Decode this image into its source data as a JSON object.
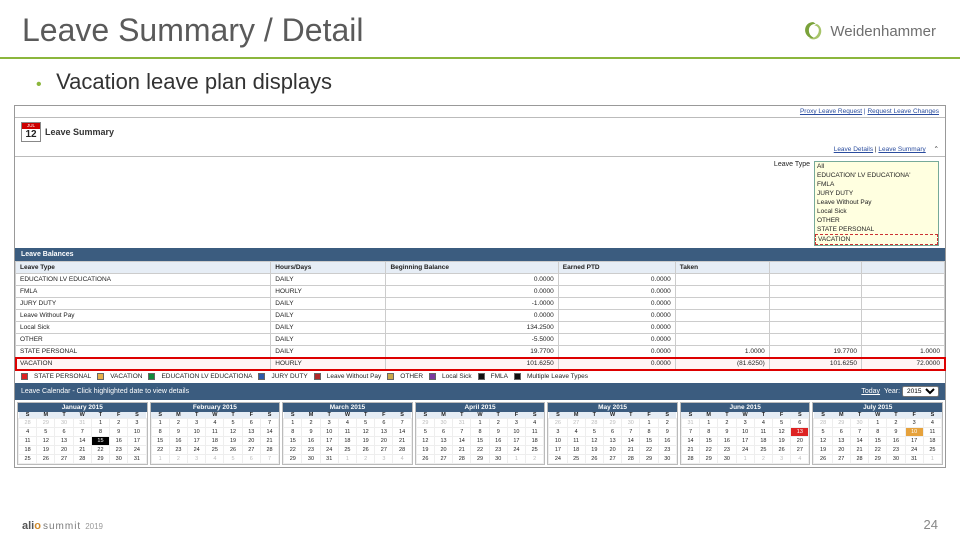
{
  "slide": {
    "title": "Leave Summary / Detail",
    "bullet": "Vacation leave plan displays",
    "page_number": "24"
  },
  "brand": {
    "name": "Weidenhammer",
    "swirl_colors": [
      "#7aa23a",
      "#a7c46a"
    ]
  },
  "footer_logo": {
    "text1": "ali",
    "text2": "o",
    "text3": "summit",
    "year": "2019"
  },
  "screenshot": {
    "top_links": {
      "a": "Proxy Leave Request",
      "b": "Request Leave Changes"
    },
    "header": {
      "cal_month": "JUL",
      "cal_day": "12",
      "title": "Leave Summary"
    },
    "tabs": {
      "a": "Leave Details",
      "b": "Leave Summary"
    },
    "leave_type_label": "Leave Type",
    "dropdown": [
      "All",
      "EDUCATION' LV EDUCATIONA'",
      "FMLA",
      "JURY DUTY",
      "Leave Without Pay",
      "Local Sick",
      "OTHER",
      "STATE PERSONAL",
      "VACATION"
    ],
    "balances_title": "Leave Balances",
    "columns": [
      "Leave Type",
      "Hours/Days",
      "Beginning Balance",
      "Earned PTD",
      "Taken",
      "",
      ""
    ],
    "rows": [
      {
        "t": "EDUCATION LV EDUCATIONA",
        "u": "DAILY",
        "b": "0.0000",
        "e": "0.0000",
        "x": "",
        "y": "",
        "z": ""
      },
      {
        "t": "FMLA",
        "u": "HOURLY",
        "b": "0.0000",
        "e": "0.0000",
        "x": "",
        "y": "",
        "z": ""
      },
      {
        "t": "JURY DUTY",
        "u": "DAILY",
        "b": "-1.0000",
        "e": "0.0000",
        "x": "",
        "y": "",
        "z": ""
      },
      {
        "t": "Leave Without Pay",
        "u": "DAILY",
        "b": "0.0000",
        "e": "0.0000",
        "x": "",
        "y": "",
        "z": ""
      },
      {
        "t": "Local Sick",
        "u": "DAILY",
        "b": "134.2500",
        "e": "0.0000",
        "x": "",
        "y": "",
        "z": ""
      },
      {
        "t": "OTHER",
        "u": "DAILY",
        "b": "-5.5000",
        "e": "0.0000",
        "x": "",
        "y": "",
        "z": ""
      },
      {
        "t": "STATE PERSONAL",
        "u": "DAILY",
        "b": "19.7700",
        "e": "0.0000",
        "x": "1.0000",
        "y": "19.7700",
        "z": "1.0000"
      },
      {
        "t": "VACATION",
        "u": "HOURLY",
        "b": "101.6250",
        "e": "0.0000",
        "x": "(81.6250)",
        "y": "101.6250",
        "z": "72.0000",
        "hl": true
      }
    ],
    "legend": [
      {
        "c": "#d22",
        "l": "STATE PERSONAL"
      },
      {
        "c": "#e7b04a",
        "l": "VACATION"
      },
      {
        "c": "#118a3b",
        "l": "EDUCATION LV EDUCATIONA"
      },
      {
        "c": "#2e5aa8",
        "l": "JURY DUTY"
      },
      {
        "c": "#b02a2a",
        "l": "Leave Without Pay"
      },
      {
        "c": "#c9a84a",
        "l": "OTHER"
      },
      {
        "c": "#7a3a9e",
        "l": "Local Sick"
      },
      {
        "c": "#111",
        "l": "FMLA"
      },
      {
        "c": "#111",
        "l": "Multiple Leave Types"
      }
    ],
    "cal_bar": {
      "label": "Leave Calendar - Click highlighted date to view details",
      "today": "Today",
      "year_label": "Year:",
      "year": "2015"
    },
    "months": [
      "January 2015",
      "February 2015",
      "March 2015",
      "April 2015",
      "May 2015",
      "June 2015",
      "July 2015"
    ],
    "dow": [
      "S",
      "M",
      "T",
      "W",
      "T",
      "F",
      "S"
    ],
    "month_start": [
      4,
      0,
      0,
      3,
      5,
      1,
      3
    ],
    "month_len": [
      31,
      28,
      31,
      30,
      31,
      30,
      31
    ],
    "prev_len": [
      31,
      31,
      28,
      31,
      30,
      31,
      30
    ],
    "marks": {
      "0": {
        "15": "mk-black"
      },
      "5": {
        "13": "mk-red"
      },
      "6": {
        "10": "mk-org"
      }
    }
  }
}
